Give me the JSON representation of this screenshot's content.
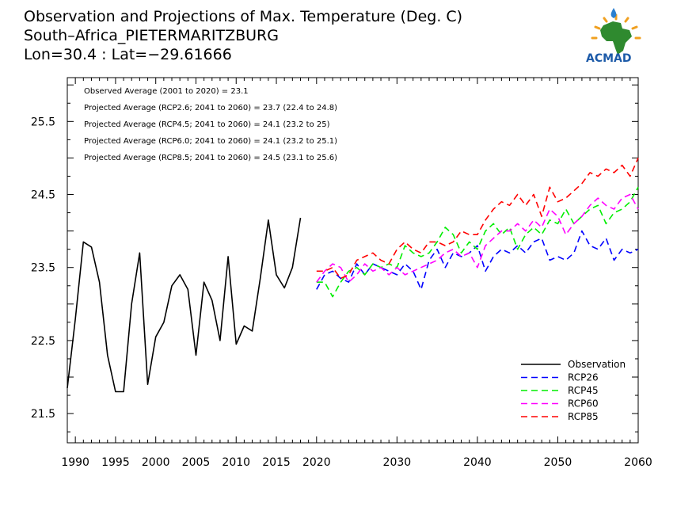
{
  "header": {
    "title_line1": "Observation and Projections of Max. Temperature (Deg. C)",
    "title_line2": "South–Africa_PIETERMARITZBURG",
    "title_line3": "Lon=30.4 : Lat=−29.61666"
  },
  "logo": {
    "text": "ACMAD",
    "icon": "africa-map-logo"
  },
  "annotations": [
    "Observed Average (2001 to 2020) = 23.1",
    "Projected Average (RCP2.6; 2041 to 2060) = 23.7 (22.4 to 24.8)",
    "Projected Average (RCP4.5; 2041 to 2060) = 24.1 (23.2 to 25)",
    "Projected Average (RCP6.0; 2041 to 2060) = 24.1 (23.2 to 25.1)",
    "Projected Average (RCP8.5; 2041 to 2060) = 24.5 (23.1 to 25.6)"
  ],
  "chart_data": {
    "type": "line",
    "title": "Observation and Projections of Max. Temperature (Deg. C)",
    "xlabel": "",
    "ylabel": "",
    "xlim": [
      1989,
      2060
    ],
    "ylim": [
      21.1,
      26.1
    ],
    "xticks_major": [
      {
        "value": 1990,
        "label": "1990"
      },
      {
        "value": 1995,
        "label": "1995"
      },
      {
        "value": 2000,
        "label": "2000"
      },
      {
        "value": 2005,
        "label": "2005"
      },
      {
        "value": 2010,
        "label": "2010"
      },
      {
        "value": 2015,
        "label": "2015"
      },
      {
        "value": 2020,
        "label": "2020"
      },
      {
        "value": 2030,
        "label": "2030"
      },
      {
        "value": 2040,
        "label": "2040"
      },
      {
        "value": 2050,
        "label": "2050"
      },
      {
        "value": 2060,
        "label": "2060"
      }
    ],
    "yticks": [
      {
        "value": 21.5,
        "label": "21.5"
      },
      {
        "value": 22.5,
        "label": "22.5"
      },
      {
        "value": 23.5,
        "label": "23.5"
      },
      {
        "value": 24.5,
        "label": "24.5"
      },
      {
        "value": 25.5,
        "label": "25.5"
      }
    ],
    "legend_position": "bottom-right",
    "series": [
      {
        "name": "Observation",
        "color": "#000000",
        "dash": "solid",
        "x": [
          1989,
          1990,
          1991,
          1992,
          1993,
          1994,
          1995,
          1996,
          1997,
          1998,
          1999,
          2000,
          2001,
          2002,
          2003,
          2004,
          2005,
          2006,
          2007,
          2008,
          2009,
          2010,
          2011,
          2012,
          2013,
          2014,
          2015,
          2016,
          2017,
          2018,
          2019
        ],
        "y": [
          21.85,
          22.8,
          23.85,
          23.78,
          23.3,
          22.3,
          21.8,
          21.8,
          23.0,
          23.7,
          21.9,
          22.55,
          22.75,
          23.25,
          23.4,
          23.2,
          22.3,
          23.3,
          23.05,
          22.5,
          23.65,
          22.45,
          22.7,
          22.63,
          23.35,
          24.15,
          23.4,
          23.22,
          23.5,
          24.18,
          null
        ]
      },
      {
        "name": "RCP26",
        "color": "#0000ff",
        "dash": "dashed",
        "x": [
          2020,
          2021,
          2022,
          2023,
          2024,
          2025,
          2026,
          2027,
          2028,
          2029,
          2030,
          2031,
          2032,
          2033,
          2034,
          2035,
          2036,
          2037,
          2038,
          2039,
          2040,
          2041,
          2042,
          2043,
          2044,
          2045,
          2046,
          2047,
          2048,
          2049,
          2050,
          2051,
          2052,
          2053,
          2054,
          2055,
          2056,
          2057,
          2058,
          2059,
          2060
        ],
        "y": [
          23.2,
          23.4,
          23.45,
          23.35,
          23.3,
          23.55,
          23.4,
          23.55,
          23.5,
          23.45,
          23.4,
          23.55,
          23.45,
          23.2,
          23.6,
          23.75,
          23.5,
          23.7,
          23.65,
          23.7,
          23.8,
          23.45,
          23.65,
          23.75,
          23.7,
          23.8,
          23.7,
          23.85,
          23.9,
          23.6,
          23.65,
          23.6,
          23.7,
          24.0,
          23.8,
          23.75,
          23.9,
          23.6,
          23.75,
          23.7,
          23.75
        ]
      },
      {
        "name": "RCP45",
        "color": "#00ee00",
        "dash": "dashed",
        "x": [
          2020,
          2021,
          2022,
          2023,
          2024,
          2025,
          2026,
          2027,
          2028,
          2029,
          2030,
          2031,
          2032,
          2033,
          2034,
          2035,
          2036,
          2037,
          2038,
          2039,
          2040,
          2041,
          2042,
          2043,
          2044,
          2045,
          2046,
          2047,
          2048,
          2049,
          2050,
          2051,
          2052,
          2053,
          2054,
          2055,
          2056,
          2057,
          2058,
          2059,
          2060
        ],
        "y": [
          23.3,
          23.3,
          23.1,
          23.3,
          23.45,
          23.5,
          23.4,
          23.55,
          23.5,
          23.55,
          23.5,
          23.8,
          23.7,
          23.65,
          23.7,
          23.85,
          24.05,
          23.95,
          23.7,
          23.85,
          23.75,
          24.0,
          24.1,
          23.95,
          24.05,
          23.75,
          23.95,
          24.05,
          23.95,
          24.15,
          24.1,
          24.3,
          24.1,
          24.2,
          24.3,
          24.35,
          24.1,
          24.25,
          24.3,
          24.4,
          24.6
        ]
      },
      {
        "name": "RCP60",
        "color": "#ff00ff",
        "dash": "dashed",
        "x": [
          2020,
          2021,
          2022,
          2023,
          2024,
          2025,
          2026,
          2027,
          2028,
          2029,
          2030,
          2031,
          2032,
          2033,
          2034,
          2035,
          2036,
          2037,
          2038,
          2039,
          2040,
          2041,
          2042,
          2043,
          2044,
          2045,
          2046,
          2047,
          2048,
          2049,
          2050,
          2051,
          2052,
          2053,
          2054,
          2055,
          2056,
          2057,
          2058,
          2059,
          2060
        ],
        "y": [
          23.3,
          23.45,
          23.55,
          23.5,
          23.3,
          23.4,
          23.55,
          23.45,
          23.5,
          23.4,
          23.5,
          23.4,
          23.45,
          23.5,
          23.55,
          23.6,
          23.7,
          23.75,
          23.65,
          23.7,
          23.5,
          23.8,
          23.9,
          24.0,
          24.0,
          24.1,
          24.0,
          24.15,
          24.05,
          24.3,
          24.2,
          23.95,
          24.1,
          24.2,
          24.35,
          24.45,
          24.35,
          24.3,
          24.45,
          24.5,
          24.3
        ]
      },
      {
        "name": "RCP85",
        "color": "#ff0000",
        "dash": "dashed",
        "x": [
          2020,
          2021,
          2022,
          2023,
          2024,
          2025,
          2026,
          2027,
          2028,
          2029,
          2030,
          2031,
          2032,
          2033,
          2034,
          2035,
          2036,
          2037,
          2038,
          2039,
          2040,
          2041,
          2042,
          2043,
          2044,
          2045,
          2046,
          2047,
          2048,
          2049,
          2050,
          2051,
          2052,
          2053,
          2054,
          2055,
          2056,
          2057,
          2058,
          2059,
          2060
        ],
        "y": [
          23.45,
          23.45,
          23.5,
          23.35,
          23.4,
          23.6,
          23.65,
          23.7,
          23.6,
          23.55,
          23.75,
          23.85,
          23.75,
          23.7,
          23.85,
          23.85,
          23.8,
          23.85,
          24.0,
          23.95,
          23.95,
          24.15,
          24.3,
          24.4,
          24.35,
          24.5,
          24.35,
          24.5,
          24.2,
          24.6,
          24.4,
          24.45,
          24.55,
          24.65,
          24.8,
          24.75,
          24.85,
          24.8,
          24.9,
          24.75,
          25.0
        ]
      }
    ]
  }
}
